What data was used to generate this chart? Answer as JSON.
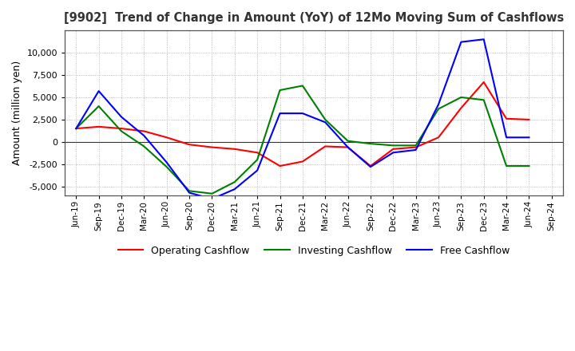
{
  "title": "[9902]  Trend of Change in Amount (YoY) of 12Mo Moving Sum of Cashflows",
  "ylabel": "Amount (million yen)",
  "ylim": [
    -6000,
    12500
  ],
  "yticks": [
    -5000,
    -2500,
    0,
    2500,
    5000,
    7500,
    10000
  ],
  "x_labels": [
    "Jun-19",
    "Sep-19",
    "Dec-19",
    "Mar-20",
    "Jun-20",
    "Sep-20",
    "Dec-20",
    "Mar-21",
    "Jun-21",
    "Sep-21",
    "Dec-21",
    "Mar-22",
    "Jun-22",
    "Sep-22",
    "Dec-22",
    "Mar-23",
    "Jun-23",
    "Sep-23",
    "Dec-23",
    "Mar-24",
    "Jun-24",
    "Sep-24"
  ],
  "operating": [
    1500,
    1700,
    1500,
    1200,
    500,
    -300,
    -600,
    -800,
    -1200,
    -2700,
    -2200,
    -500,
    -600,
    -2700,
    -800,
    -600,
    500,
    3800,
    6700,
    2600,
    2500,
    null
  ],
  "investing": [
    1500,
    4000,
    1200,
    -500,
    -2800,
    -5500,
    -5800,
    -4500,
    -2000,
    5800,
    6300,
    2500,
    100,
    -200,
    -400,
    -400,
    3700,
    5000,
    4700,
    -2700,
    -2700,
    null
  ],
  "free": [
    1500,
    5700,
    2800,
    700,
    -2300,
    -5700,
    -6400,
    -5300,
    -3200,
    3200,
    3200,
    2200,
    -600,
    -2800,
    -1200,
    -900,
    4200,
    11200,
    11500,
    500,
    500,
    null
  ],
  "colors": {
    "operating": "#ff0000",
    "investing": "#008000",
    "free": "#0000ff"
  },
  "legend_labels": [
    "Operating Cashflow",
    "Investing Cashflow",
    "Free Cashflow"
  ],
  "background_color": "#ffffff",
  "grid_color": "#aaaaaa",
  "spine_color": "#555555"
}
